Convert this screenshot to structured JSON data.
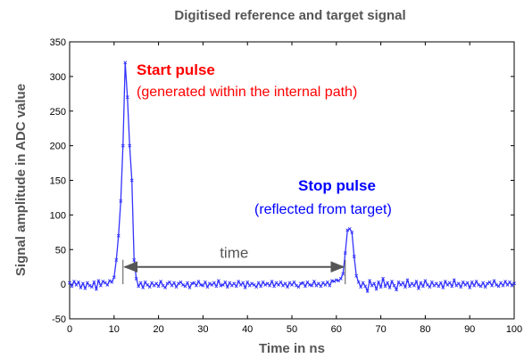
{
  "chart_data": {
    "type": "line",
    "title": "Digitised reference and target signal",
    "xlabel": "Time in ns",
    "ylabel": "Signal amplitude in ADC value",
    "xlim": [
      0,
      100
    ],
    "ylim": [
      -50,
      350
    ],
    "xticks": [
      0,
      10,
      20,
      30,
      40,
      50,
      60,
      70,
      80,
      90,
      100
    ],
    "yticks": [
      -50,
      0,
      50,
      100,
      150,
      200,
      250,
      300,
      350
    ],
    "grid": false,
    "colors": {
      "series": "#3333ff",
      "start_label": "#ff0000",
      "stop_label": "#0000ff",
      "arrow": "#555555"
    },
    "series": [
      {
        "x": [
          0.0,
          0.5,
          1.0,
          1.5,
          2.0,
          2.5,
          3.0,
          3.5,
          4.0,
          4.5,
          5.0,
          5.5,
          6.0,
          6.5,
          7.0,
          7.5,
          8.0,
          8.5,
          9.0,
          9.5,
          10.0,
          10.5,
          11.0,
          11.5,
          12.0,
          12.5,
          13.0,
          13.5,
          14.0,
          14.5,
          15.0,
          15.5,
          16.0,
          16.5,
          17.0,
          17.5,
          18.0,
          18.5,
          19.0,
          19.5,
          20.0,
          20.5,
          21.0,
          21.5,
          22.0,
          22.5,
          23.0,
          23.5,
          24.0,
          24.5,
          25.0,
          25.5,
          26.0,
          26.5,
          27.0,
          27.5,
          28.0,
          28.5,
          29.0,
          29.5,
          30.0,
          30.5,
          31.0,
          31.5,
          32.0,
          32.5,
          33.0,
          33.5,
          34.0,
          34.5,
          35.0,
          35.5,
          36.0,
          36.5,
          37.0,
          37.5,
          38.0,
          38.5,
          39.0,
          39.5,
          40.0,
          40.5,
          41.0,
          41.5,
          42.0,
          42.5,
          43.0,
          43.5,
          44.0,
          44.5,
          45.0,
          45.5,
          46.0,
          46.5,
          47.0,
          47.5,
          48.0,
          48.5,
          49.0,
          49.5,
          50.0,
          50.5,
          51.0,
          51.5,
          52.0,
          52.5,
          53.0,
          53.5,
          54.0,
          54.5,
          55.0,
          55.5,
          56.0,
          56.5,
          57.0,
          57.5,
          58.0,
          58.5,
          59.0,
          59.5,
          60.0,
          60.5,
          61.0,
          61.5,
          62.0,
          62.5,
          63.0,
          63.5,
          64.0,
          64.5,
          65.0,
          65.5,
          66.0,
          66.5,
          67.0,
          67.5,
          68.0,
          68.5,
          69.0,
          69.5,
          70.0,
          70.5,
          71.0,
          71.5,
          72.0,
          72.5,
          73.0,
          73.5,
          74.0,
          74.5,
          75.0,
          75.5,
          76.0,
          76.5,
          77.0,
          77.5,
          78.0,
          78.5,
          79.0,
          79.5,
          80.0,
          80.5,
          81.0,
          81.5,
          82.0,
          82.5,
          83.0,
          83.5,
          84.0,
          84.5,
          85.0,
          85.5,
          86.0,
          86.5,
          87.0,
          87.5,
          88.0,
          88.5,
          89.0,
          89.5,
          90.0,
          90.5,
          91.0,
          91.5,
          92.0,
          92.5,
          93.0,
          93.5,
          94.0,
          94.5,
          95.0,
          95.5,
          96.0,
          96.5,
          97.0,
          97.5,
          98.0,
          98.5,
          99.0,
          99.5,
          100.0
        ],
        "y": [
          2,
          -3,
          4,
          -1,
          3,
          -5,
          1,
          -6,
          2,
          -2,
          -4,
          3,
          -7,
          5,
          -2,
          4,
          2,
          -1,
          5,
          3,
          10,
          35,
          70,
          120,
          200,
          320,
          270,
          200,
          150,
          35,
          8,
          -3,
          2,
          -5,
          3,
          -1,
          -4,
          2,
          -2,
          1,
          -3,
          4,
          -2,
          -5,
          1,
          3,
          -2,
          2,
          -4,
          1,
          3,
          -1,
          -3,
          2,
          -5,
          1,
          2,
          -2,
          4,
          -1,
          -2,
          3,
          -4,
          1,
          -1,
          2,
          -3,
          5,
          -2,
          -1,
          3,
          -4,
          2,
          -2,
          1,
          -3,
          4,
          -1,
          2,
          -5,
          3,
          -2,
          1,
          -1,
          -4,
          2,
          -3,
          3,
          -1,
          1,
          -2,
          4,
          -3,
          2,
          -1,
          3,
          -2,
          1,
          -4,
          2,
          -1,
          3,
          -2,
          -4,
          1,
          2,
          -3,
          3,
          -1,
          -2,
          4,
          -2,
          1,
          -3,
          2,
          -1,
          3,
          -2,
          5,
          4,
          6,
          5,
          8,
          15,
          45,
          78,
          80,
          75,
          40,
          12,
          3,
          -4,
          2,
          -3,
          -10,
          5,
          -2,
          1,
          -7,
          3,
          -4,
          8,
          -3,
          2,
          -5,
          4,
          -2,
          -8,
          3,
          -1,
          2,
          -4,
          6,
          -3,
          1,
          -2,
          4,
          -6,
          2,
          -3,
          5,
          -1,
          -4,
          3,
          -2,
          1,
          -3,
          2,
          -5,
          4,
          -1,
          2,
          -3,
          6,
          -2,
          1,
          -4,
          3,
          -1,
          2,
          -5,
          3,
          -2,
          4,
          -1,
          -3,
          2,
          -4,
          1,
          3,
          -2,
          5,
          -1,
          -3,
          2,
          -2,
          4,
          -1,
          3,
          -2,
          1
        ]
      }
    ],
    "annotations": {
      "start_title": "Start pulse",
      "start_sub": "(generated within the internal path)",
      "stop_title": "Stop pulse",
      "stop_sub": "(reflected from target)",
      "time_label": "time",
      "arrow_from_x": 12,
      "arrow_to_x": 62,
      "arrow_y": 25
    }
  }
}
